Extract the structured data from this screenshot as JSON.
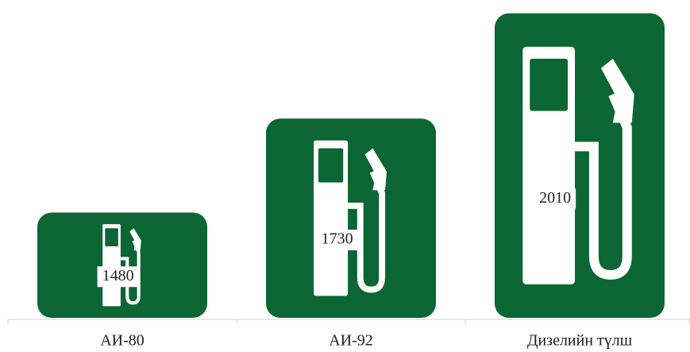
{
  "chart_data": {
    "type": "pictograph-bar",
    "categories": [
      "АИ-80",
      "АИ-92",
      "Дизелийн түлш"
    ],
    "values": [
      1480,
      1730,
      2010
    ],
    "color": "#0b6634",
    "ylim": [
      1200,
      2020
    ]
  }
}
